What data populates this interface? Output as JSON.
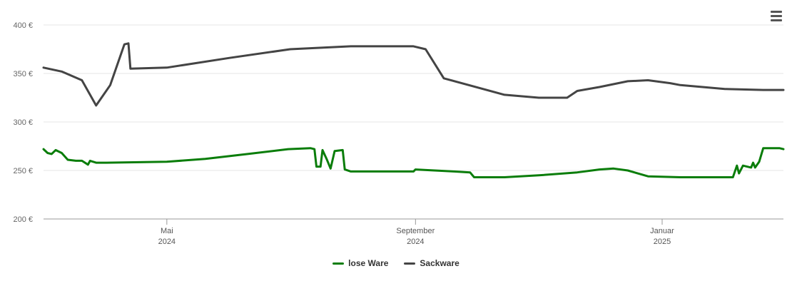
{
  "chart_data": {
    "type": "line",
    "xlabel": "",
    "ylabel": "",
    "ylim": [
      200,
      400
    ],
    "yticks": [
      200,
      250,
      300,
      350,
      400
    ],
    "y_tick_labels": [
      "200 €",
      "250 €",
      "300 €",
      "350 €",
      "400 €"
    ],
    "x_range": [
      "2024-03-01",
      "2025-03-02"
    ],
    "x_ticks": [
      {
        "date": "2024-05-01",
        "line1": "Mai",
        "line2": "2024"
      },
      {
        "date": "2024-09-01",
        "line1": "September",
        "line2": "2024"
      },
      {
        "date": "2025-01-01",
        "line1": "Januar",
        "line2": "2025"
      }
    ],
    "grid": true,
    "legend_position": "bottom-center",
    "series": [
      {
        "name": "lose Ware",
        "color": "#0a7d0a",
        "points": [
          [
            "2024-03-01",
            272
          ],
          [
            "2024-03-03",
            268
          ],
          [
            "2024-03-05",
            267
          ],
          [
            "2024-03-07",
            271
          ],
          [
            "2024-03-10",
            268
          ],
          [
            "2024-03-13",
            261
          ],
          [
            "2024-03-17",
            260
          ],
          [
            "2024-03-20",
            260
          ],
          [
            "2024-03-23",
            256
          ],
          [
            "2024-03-24",
            260
          ],
          [
            "2024-03-27",
            258
          ],
          [
            "2024-04-01",
            258
          ],
          [
            "2024-05-01",
            259
          ],
          [
            "2024-05-20",
            262
          ],
          [
            "2024-06-10",
            267
          ],
          [
            "2024-06-30",
            272
          ],
          [
            "2024-07-11",
            273
          ],
          [
            "2024-07-13",
            272
          ],
          [
            "2024-07-14",
            254
          ],
          [
            "2024-07-16",
            254
          ],
          [
            "2024-07-17",
            271
          ],
          [
            "2024-07-19",
            262
          ],
          [
            "2024-07-21",
            252
          ],
          [
            "2024-07-23",
            270
          ],
          [
            "2024-07-27",
            271
          ],
          [
            "2024-07-28",
            251
          ],
          [
            "2024-07-31",
            249
          ],
          [
            "2024-08-20",
            249
          ],
          [
            "2024-08-31",
            249
          ],
          [
            "2024-09-01",
            251
          ],
          [
            "2024-09-20",
            249
          ],
          [
            "2024-09-28",
            248
          ],
          [
            "2024-09-30",
            243
          ],
          [
            "2024-10-15",
            243
          ],
          [
            "2024-11-01",
            245
          ],
          [
            "2024-11-20",
            248
          ],
          [
            "2024-12-01",
            251
          ],
          [
            "2024-12-08",
            252
          ],
          [
            "2024-12-15",
            250
          ],
          [
            "2024-12-25",
            244
          ],
          [
            "2025-01-10",
            243
          ],
          [
            "2025-01-28",
            243
          ],
          [
            "2025-02-05",
            243
          ],
          [
            "2025-02-07",
            255
          ],
          [
            "2025-02-08",
            247
          ],
          [
            "2025-02-10",
            255
          ],
          [
            "2025-02-14",
            253
          ],
          [
            "2025-02-15",
            258
          ],
          [
            "2025-02-16",
            253
          ],
          [
            "2025-02-18",
            259
          ],
          [
            "2025-02-20",
            273
          ],
          [
            "2025-02-24",
            273
          ],
          [
            "2025-02-28",
            273
          ],
          [
            "2025-03-02",
            272
          ]
        ]
      },
      {
        "name": "Sackware",
        "color": "#444444",
        "points": [
          [
            "2024-03-01",
            356
          ],
          [
            "2024-03-10",
            352
          ],
          [
            "2024-03-20",
            343
          ],
          [
            "2024-03-27",
            317
          ],
          [
            "2024-04-03",
            338
          ],
          [
            "2024-04-10",
            380
          ],
          [
            "2024-04-12",
            381
          ],
          [
            "2024-04-13",
            355
          ],
          [
            "2024-05-01",
            356
          ],
          [
            "2024-06-01",
            366
          ],
          [
            "2024-07-01",
            375
          ],
          [
            "2024-07-31",
            378
          ],
          [
            "2024-08-31",
            378
          ],
          [
            "2024-09-06",
            375
          ],
          [
            "2024-09-15",
            345
          ],
          [
            "2024-10-15",
            328
          ],
          [
            "2024-11-01",
            325
          ],
          [
            "2024-11-15",
            325
          ],
          [
            "2024-11-20",
            332
          ],
          [
            "2024-12-01",
            336
          ],
          [
            "2024-12-15",
            342
          ],
          [
            "2024-12-25",
            343
          ],
          [
            "2025-01-05",
            340
          ],
          [
            "2025-01-10",
            338
          ],
          [
            "2025-02-01",
            334
          ],
          [
            "2025-02-20",
            333
          ],
          [
            "2025-03-02",
            333
          ]
        ]
      }
    ]
  },
  "menu": {
    "icon": "hamburger-menu-icon"
  }
}
